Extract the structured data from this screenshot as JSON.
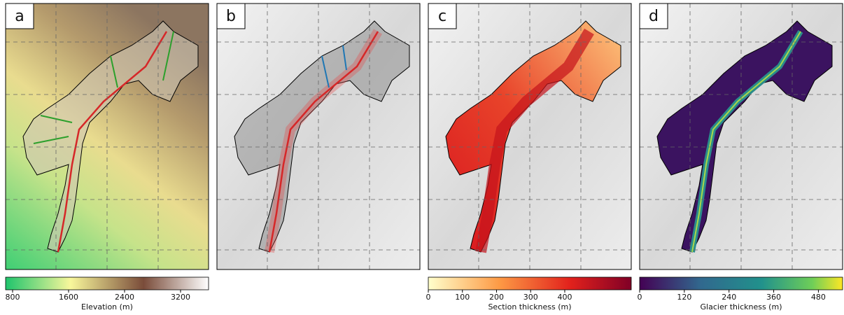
{
  "panels": [
    {
      "label": "a",
      "colorbar": {
        "label": "Elevation (m)",
        "lim": [
          700,
          3600
        ],
        "ticks": [
          800,
          1600,
          2400,
          3200
        ]
      }
    },
    {
      "label": "b"
    },
    {
      "label": "c",
      "colorbar": {
        "label": "Section thickness (m)",
        "lim": [
          0,
          595
        ],
        "ticks": [
          0,
          100,
          200,
          300,
          400
        ]
      }
    },
    {
      "label": "d",
      "colorbar": {
        "label": "Glacier thickness (m)",
        "lim": [
          0,
          545
        ],
        "ticks": [
          0,
          120,
          240,
          360,
          480
        ]
      }
    }
  ]
}
